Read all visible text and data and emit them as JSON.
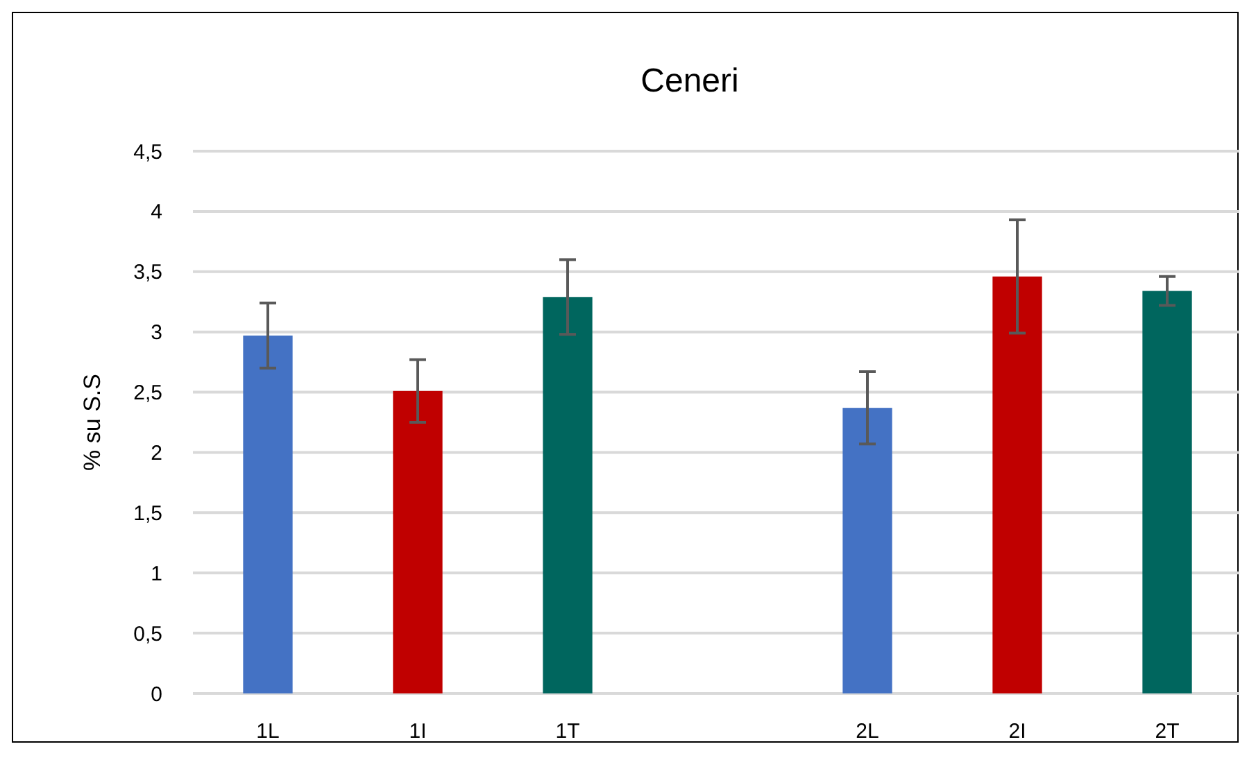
{
  "chart_data": {
    "type": "bar",
    "title": "Ceneri",
    "ylabel": "% su S.S",
    "categories": [
      "1L",
      "1I",
      "1T",
      null,
      "2L",
      "2I",
      "2T"
    ],
    "values": [
      2.97,
      2.51,
      3.29,
      null,
      2.37,
      3.46,
      3.34
    ],
    "errors": [
      0.27,
      0.26,
      0.31,
      null,
      0.3,
      0.47,
      0.12
    ],
    "colors": [
      "#4472c4",
      "#c00000",
      "#00665e",
      null,
      "#4472c4",
      "#c00000",
      "#00665e"
    ],
    "ylim": [
      0,
      4.5
    ],
    "yticks": [
      0,
      {
        "value": 0.5,
        "label": "0,5"
      },
      1,
      {
        "value": 1.5,
        "label": "1,5"
      },
      2,
      {
        "value": 2.5,
        "label": "2,5"
      },
      3,
      {
        "value": 3.5,
        "label": "3,5"
      },
      4,
      {
        "value": 4.5,
        "label": "4,5"
      }
    ],
    "grid": "y"
  }
}
